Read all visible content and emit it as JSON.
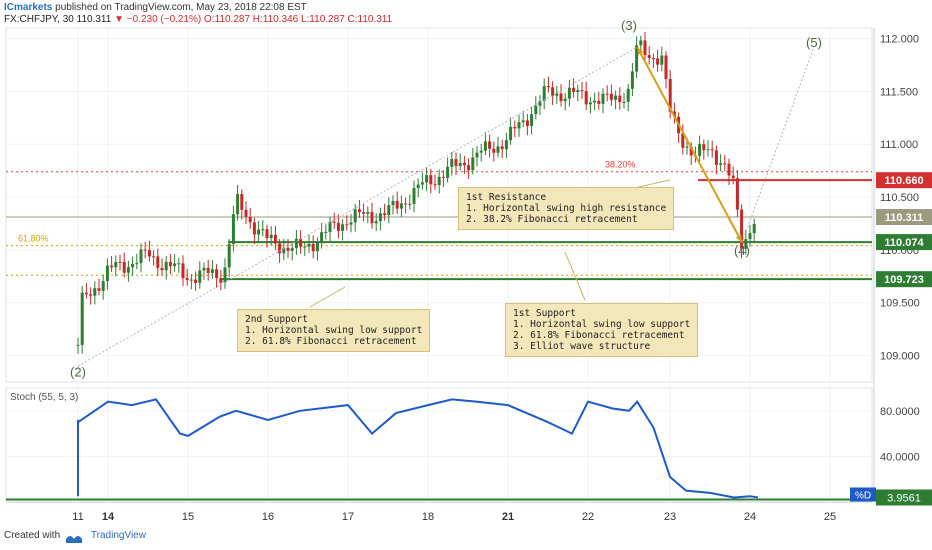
{
  "header": {
    "publisher": "ICmarkets",
    "published_text": "published on TradingView.com, May 23, 2018 22:08 EST",
    "symbol": "FX:CHFJPY, 30",
    "last": "110.311",
    "change": "−0.230 (−0.21%)",
    "ohlc": "O:110.287 H:110.346 L:110.287 C:110.311"
  },
  "footer": {
    "created_with": "Created with",
    "brand": "TradingView"
  },
  "notes": {
    "resistance": "1st Resistance\n1. Horizontal swing high resistance\n2. 38.2% Fibonacci retracement",
    "support1": "1st Support\n1. Horizontal swing low support\n2. 61.8% Fibonacci retracement\n3. Elliot wave structure",
    "support2": "2nd Support\n1. Horizontal swing low support\n2. 61.8% Fibonacci retracement"
  },
  "colors": {
    "up": "#2e7d32",
    "down": "#c62828",
    "stoch": "#1e5bc6",
    "note": "#f3e6b8",
    "arrow": "#d4a017"
  },
  "chart_data": [
    {
      "type": "candlestick",
      "title": "FX:CHFJPY, 30",
      "ylim": [
        108.75,
        112.1
      ],
      "y_ticks": [
        "112.000",
        "111.500",
        "111.000",
        "110.500",
        "110.000",
        "109.500",
        "109.000"
      ],
      "x_ticks": [
        "11",
        "14",
        "15",
        "16",
        "17",
        "18",
        "21",
        "22",
        "23",
        "24",
        "25"
      ],
      "price_path": {
        "x": [
          "11",
          "11.3",
          "12",
          "14",
          "14.5",
          "15",
          "15.45",
          "15.6",
          "16",
          "16.4",
          "17",
          "17.5",
          "18",
          "18.5",
          "21",
          "21.5",
          "22",
          "22.2",
          "22.5",
          "22.6",
          "22.9",
          "23",
          "23.3",
          "23.5",
          "23.8",
          "23.9",
          "24.1"
        ],
        "y": [
          109.1,
          108.9,
          109.45,
          109.8,
          109.95,
          109.75,
          109.78,
          110.45,
          110.08,
          110.0,
          110.3,
          110.35,
          110.65,
          110.85,
          111.05,
          111.5,
          111.45,
          111.4,
          111.5,
          111.92,
          111.8,
          111.3,
          110.85,
          111.0,
          110.6,
          110.07,
          110.31
        ]
      },
      "levels": [
        {
          "label": "110.660",
          "value": 110.66,
          "color": "#d32f2f"
        },
        {
          "label": "110.311",
          "value": 110.311,
          "color": "#9a9a7e"
        },
        {
          "label": "110.074",
          "value": 110.074,
          "color": "#2e7d32"
        },
        {
          "label": "109.723",
          "value": 109.723,
          "color": "#2e7d32"
        }
      ],
      "fibonacci": [
        {
          "label": "38.20%",
          "value": 110.74,
          "color": "#e53935"
        },
        {
          "label": "61.80%",
          "value": 110.04,
          "color": "#e0a000"
        },
        {
          "label": "",
          "value": 109.76,
          "color": "#e0a000"
        }
      ],
      "waves": [
        {
          "label": "(2)",
          "x": "11.3",
          "y": 108.8
        },
        {
          "label": "(3)",
          "x": "22.5",
          "y": 112.08
        },
        {
          "label": "(4)",
          "x": "23.9",
          "y": 109.95
        },
        {
          "label": "(5)",
          "x": "24.8",
          "y": 111.92
        }
      ]
    },
    {
      "type": "line",
      "title": "Stoch (55, 5, 3)",
      "ylim": [
        0,
        100
      ],
      "y_ticks": [
        "80.0000",
        "40.0000"
      ],
      "series": [
        {
          "name": "%D",
          "x": [
            "11",
            "11.3",
            "11.6",
            "11.9",
            "12",
            "14",
            "14.3",
            "14.6",
            "14.9",
            "15",
            "15.4",
            "15.6",
            "16",
            "16.4",
            "17",
            "17.3",
            "17.6",
            "18",
            "18.3",
            "18.6",
            "21",
            "21.5",
            "21.8",
            "22",
            "22.3",
            "22.5",
            "22.6",
            "22.8",
            "23",
            "23.2",
            "23.5",
            "23.8",
            "24",
            "24.1"
          ],
          "values": [
            8,
            5,
            30,
            72,
            70,
            88,
            85,
            90,
            60,
            58,
            75,
            80,
            72,
            80,
            85,
            60,
            78,
            85,
            90,
            88,
            85,
            70,
            60,
            88,
            82,
            80,
            88,
            65,
            22,
            10,
            8,
            4,
            5,
            4
          ]
        }
      ],
      "current": {
        "label": "3.9561",
        "value": 3.9561
      }
    }
  ]
}
